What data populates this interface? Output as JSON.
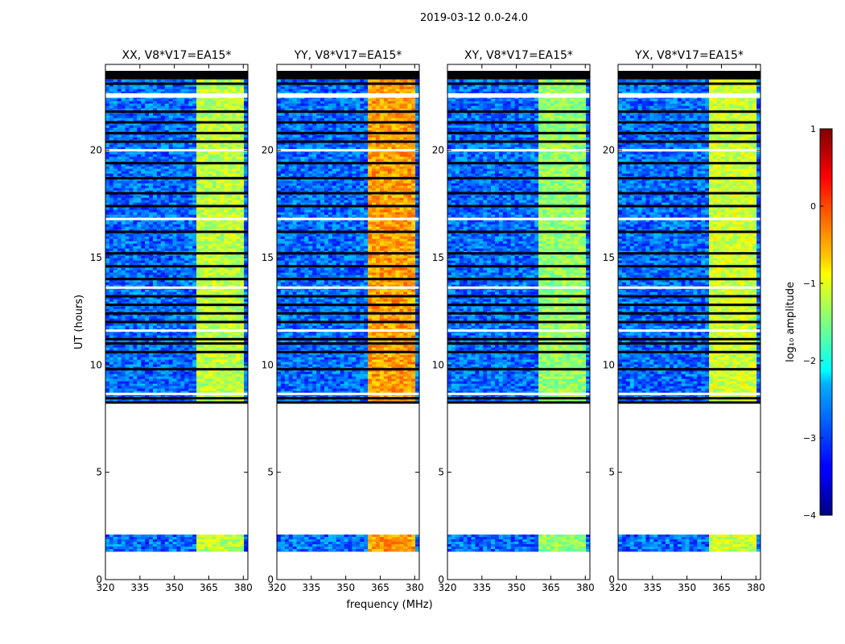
{
  "chart_data": {
    "type": "heatmap",
    "suptitle": "2019-03-12 0.0-24.0",
    "xlabel": "frequency (MHz)",
    "ylabel": "UT (hours)",
    "xlim": [
      320,
      382
    ],
    "ylim": [
      0,
      24
    ],
    "xticks": [
      320,
      335,
      350,
      365,
      380
    ],
    "yticks": [
      0,
      5,
      10,
      15,
      20
    ],
    "xtick_labels": [
      "320",
      "335",
      "350",
      "365",
      "380"
    ],
    "ytick_labels": [
      "0",
      "5",
      "10",
      "15",
      "20"
    ],
    "panels": [
      {
        "title": "XX, V8*V17=EA15*",
        "hot_band_mhz": [
          359.5,
          379.5
        ],
        "hot_level": -1.2
      },
      {
        "title": "YY, V8*V17=EA15*",
        "hot_band_mhz": [
          359.5,
          379.5
        ],
        "hot_level": -0.4
      },
      {
        "title": "XY, V8*V17=EA15*",
        "hot_band_mhz": [
          359.5,
          379.5
        ],
        "hot_level": -1.4
      },
      {
        "title": "YX, V8*V17=EA15*",
        "hot_band_mhz": [
          359.5,
          379.5
        ],
        "hot_level": -1.1
      }
    ],
    "colorbar": {
      "label": "log₁₀ amplitude",
      "range": [
        -4,
        1
      ],
      "ticks": [
        1,
        0,
        -1,
        -2,
        -3,
        -4
      ],
      "tick_labels": [
        "1",
        "0",
        "−1",
        "−2",
        "−3",
        "−4"
      ],
      "colormap": "jet"
    },
    "data_ut_ranges_hours": [
      [
        1.3,
        2.1
      ],
      [
        8.2,
        23.3
      ]
    ],
    "flagged_rows_ut_hours": [
      8.25,
      8.45,
      8.65,
      9.8,
      10.6,
      11.0,
      11.2,
      11.6,
      12.0,
      12.4,
      12.8,
      13.2,
      13.6,
      14.0,
      14.6,
      15.2,
      16.2,
      16.8,
      17.4,
      18.0,
      18.7,
      19.4,
      20.0,
      20.4,
      20.8,
      21.3,
      21.8,
      22.5,
      23.1
    ]
  },
  "colors": {
    "background": "#ffffff",
    "axis": "#000000",
    "flag_black": "#000000",
    "flag_white": "#ffffff",
    "cmap_low": "#00007f",
    "cmap_high": "#7f0000"
  }
}
